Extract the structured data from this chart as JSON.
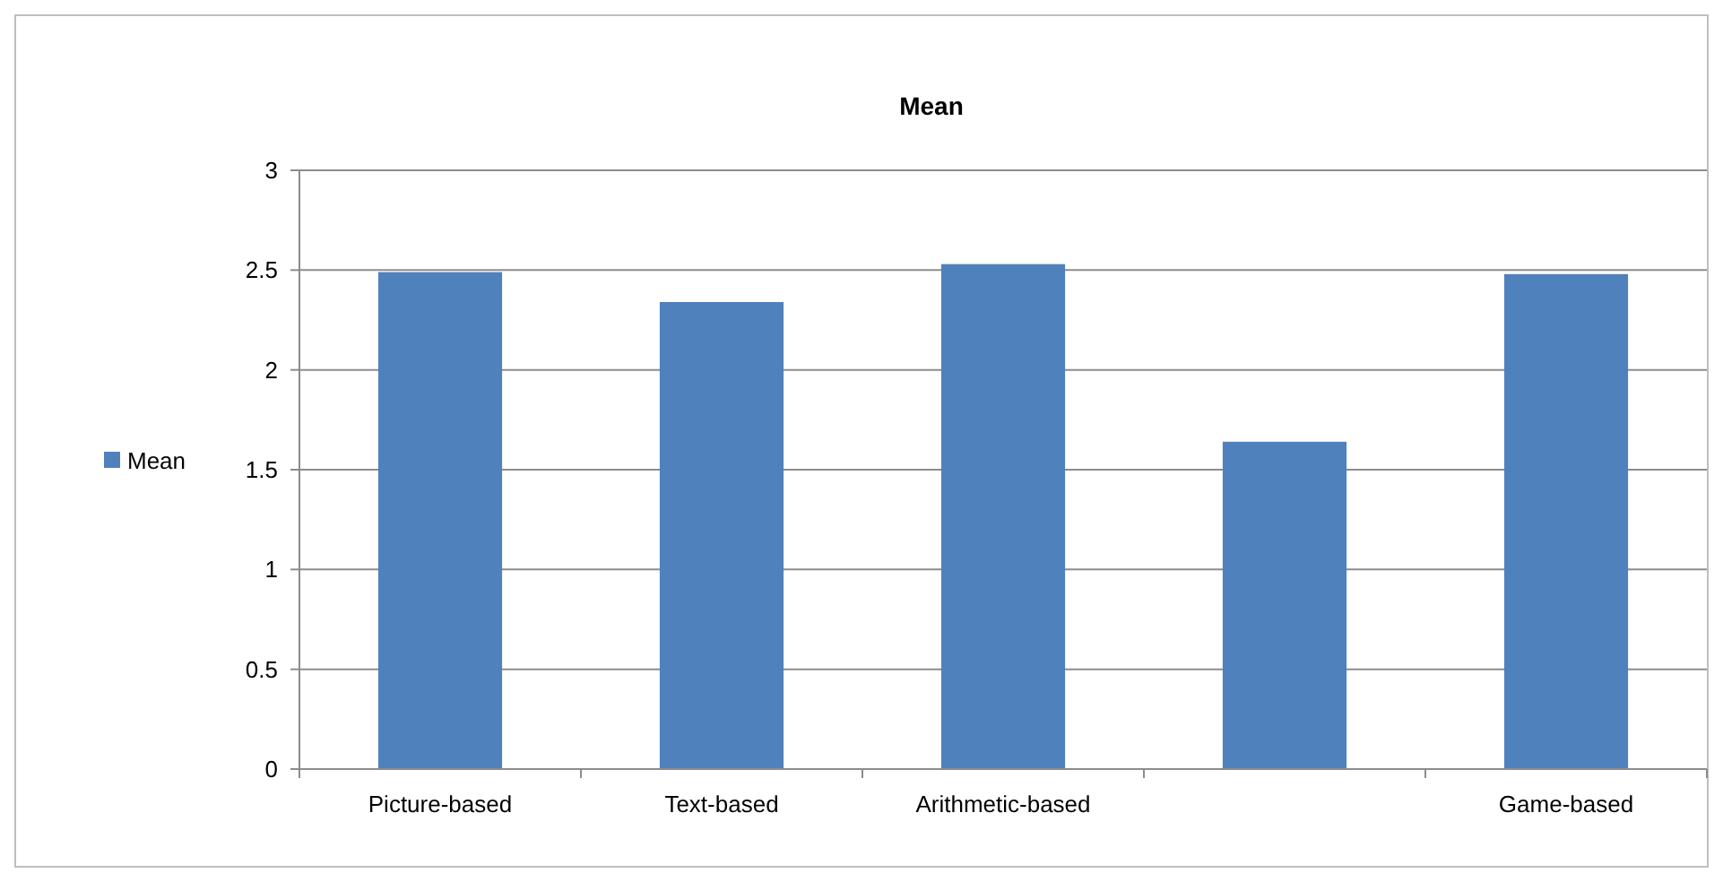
{
  "chart_data": {
    "type": "bar",
    "title": "Mean",
    "categories": [
      "Picture-based",
      "Text-based",
      "Arithmetic-based",
      null,
      "Game-based"
    ],
    "series": [
      {
        "name": "Mean",
        "color": "#4f81bd",
        "values": [
          2.49,
          2.34,
          2.53,
          1.64,
          2.48
        ]
      }
    ],
    "ylim": [
      0,
      3
    ],
    "yticks": [
      0,
      0.5,
      1,
      1.5,
      2,
      2.5,
      3
    ],
    "grid": "y",
    "legend": "left"
  }
}
